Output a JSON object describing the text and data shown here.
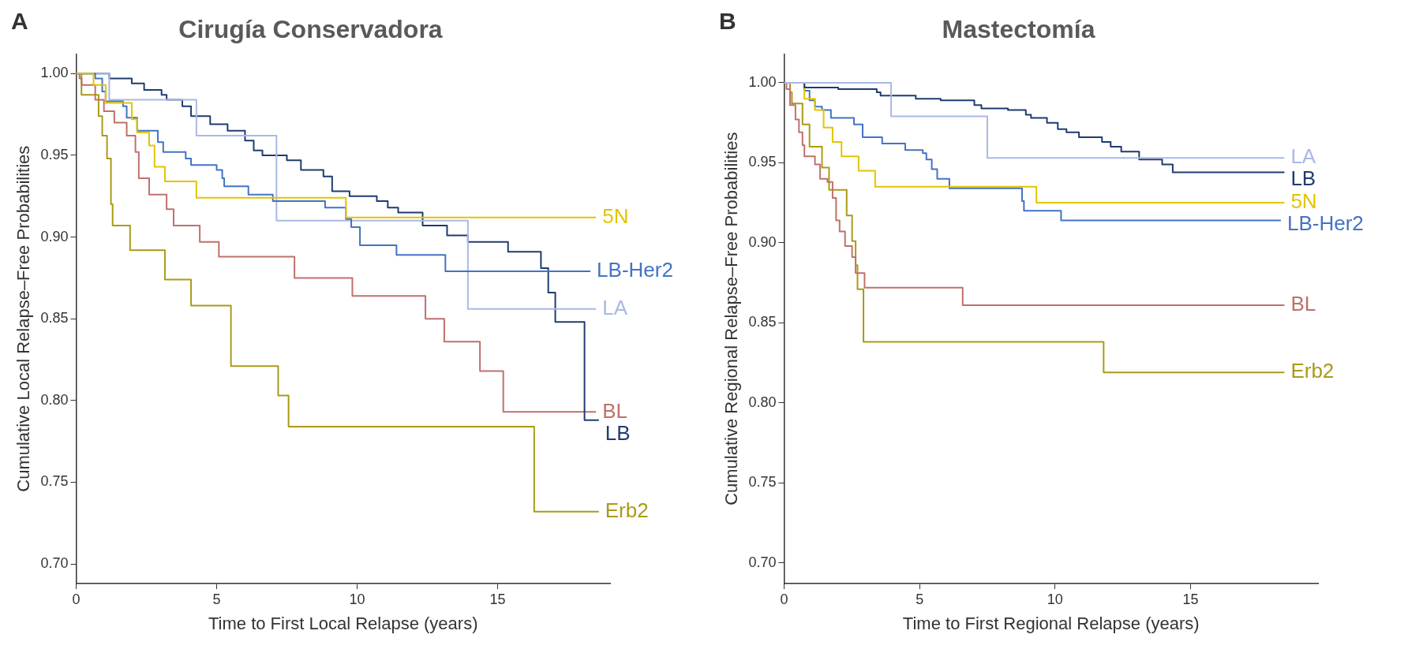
{
  "chart_data": [
    {
      "type": "step",
      "title": "Cirugía Conservadora",
      "xlabel": "Time to First Local Relapse (years)",
      "ylabel": "Cumulative Local Relapse–Free Probabilities",
      "annotations": [
        "A"
      ],
      "xlim": [
        0,
        19
      ],
      "xticks": [
        0,
        5,
        10,
        15
      ],
      "ylim": [
        0.688,
        1.012
      ],
      "yticks": [
        {
          "value": 0.7,
          "label": "0.70"
        },
        0.75,
        {
          "value": 0.8,
          "label": "0.80"
        },
        0.85,
        {
          "value": 0.9,
          "label": "0.90"
        },
        0.95,
        {
          "value": 1,
          "label": "1.00"
        }
      ],
      "grid": false,
      "series": [
        {
          "name": "5N",
          "color": "#e2c400",
          "x": [
            0,
            0.62,
            1.05,
            1.98,
            2.17,
            2.6,
            2.79,
            3.16,
            4.28,
            9.6,
            18.5
          ],
          "values": [
            1,
            0.993,
            0.982,
            0.972,
            0.964,
            0.956,
            0.943,
            0.934,
            0.924,
            0.912,
            0.912
          ]
        },
        {
          "name": "LB-Her2",
          "color": "#4472c4",
          "x": [
            0,
            0.68,
            0.93,
            1.05,
            1.67,
            1.8,
            2.17,
            2.91,
            3.1,
            3.9,
            4.09,
            5.0,
            5.2,
            5.27,
            6.13,
            7.0,
            8.86,
            9.6,
            9.79,
            10.1,
            11.4,
            13.14,
            18.3
          ],
          "values": [
            1,
            0.997,
            0.989,
            0.983,
            0.98,
            0.973,
            0.965,
            0.958,
            0.952,
            0.948,
            0.944,
            0.941,
            0.936,
            0.931,
            0.926,
            0.922,
            0.918,
            0.911,
            0.906,
            0.895,
            0.889,
            0.879,
            0.879
          ]
        },
        {
          "name": "LA",
          "color": "#a9b9e6",
          "x": [
            0,
            1.18,
            4.28,
            7.13,
            13.94,
            18.5
          ],
          "values": [
            1,
            0.984,
            0.962,
            0.91,
            0.856,
            0.856
          ]
        },
        {
          "name": "LB",
          "color": "#1f3b6f",
          "x": [
            0,
            1.18,
            1.98,
            2.42,
            3.04,
            3.22,
            3.78,
            4.09,
            4.77,
            5.39,
            6.01,
            6.32,
            6.63,
            7.5,
            8.0,
            8.8,
            9.11,
            9.73,
            10.7,
            11.09,
            11.46,
            12.33,
            13.2,
            13.94,
            15.37,
            16.54,
            16.8,
            17.05,
            18.09,
            18.6
          ],
          "values": [
            1,
            0.997,
            0.994,
            0.99,
            0.987,
            0.984,
            0.98,
            0.974,
            0.969,
            0.965,
            0.959,
            0.953,
            0.95,
            0.947,
            0.941,
            0.937,
            0.928,
            0.925,
            0.922,
            0.918,
            0.915,
            0.907,
            0.901,
            0.897,
            0.891,
            0.881,
            0.866,
            0.848,
            0.788,
            0.788
          ]
        },
        {
          "name": "BL",
          "color": "#c0706c",
          "x": [
            0,
            0.12,
            0.2,
            0.68,
            0.99,
            1.36,
            1.8,
            2.11,
            2.23,
            2.6,
            3.22,
            3.47,
            4.4,
            5.08,
            7.77,
            9.83,
            12.43,
            13.1,
            14.37,
            15.2,
            18.5
          ],
          "values": [
            1,
            0.997,
            0.993,
            0.984,
            0.977,
            0.97,
            0.962,
            0.952,
            0.936,
            0.926,
            0.917,
            0.907,
            0.897,
            0.888,
            0.875,
            0.864,
            0.85,
            0.836,
            0.818,
            0.793,
            0.793
          ]
        },
        {
          "name": "Erb2",
          "color": "#a99b16",
          "x": [
            0,
            0.19,
            0.8,
            0.93,
            1.1,
            1.24,
            1.3,
            1.92,
            3.16,
            4.09,
            5.51,
            7.19,
            7.56,
            16.3,
            18.6
          ],
          "values": [
            1,
            0.987,
            0.974,
            0.962,
            0.948,
            0.92,
            0.907,
            0.892,
            0.874,
            0.858,
            0.821,
            0.803,
            0.784,
            0.732,
            0.732
          ]
        }
      ]
    },
    {
      "type": "step",
      "title": "Mastectomía",
      "xlabel": "Time to First Regional Relapse (years)",
      "ylabel": "Cumulative Regional Relapse–Free Probabilities",
      "annotations": [
        "B"
      ],
      "xlim": [
        0,
        19.7
      ],
      "xticks": [
        0,
        5,
        10,
        15
      ],
      "ylim": [
        0.687,
        1.018
      ],
      "yticks": [
        {
          "value": 0.7,
          "label": "0.70"
        },
        0.75,
        {
          "value": 0.8,
          "label": "0.80"
        },
        0.85,
        {
          "value": 0.9,
          "label": "0.90"
        },
        0.95,
        {
          "value": 1,
          "label": "1.00"
        }
      ],
      "grid": false,
      "series": [
        {
          "name": "LA",
          "color": "#a9b9e6",
          "x": [
            0,
            3.95,
            7.5,
            18.46
          ],
          "values": [
            1,
            0.979,
            0.953,
            0.953
          ]
        },
        {
          "name": "LB",
          "color": "#1f3b6f",
          "x": [
            0,
            0.75,
            2.0,
            3.42,
            3.56,
            4.86,
            5.78,
            7.02,
            7.28,
            8.26,
            8.92,
            9.11,
            9.7,
            10.1,
            10.42,
            10.88,
            11.73,
            12.05,
            12.44,
            13.1,
            13.95,
            14.34,
            18.46
          ],
          "values": [
            1,
            0.997,
            0.996,
            0.994,
            0.992,
            0.99,
            0.989,
            0.986,
            0.984,
            0.983,
            0.98,
            0.978,
            0.975,
            0.971,
            0.969,
            0.966,
            0.963,
            0.96,
            0.957,
            0.952,
            0.949,
            0.944,
            0.944
          ]
        },
        {
          "name": "5N",
          "color": "#e2c400",
          "x": [
            0,
            0.75,
            1.14,
            1.46,
            1.79,
            2.12,
            2.75,
            3.36,
            9.31,
            18.46
          ],
          "values": [
            1,
            0.99,
            0.983,
            0.972,
            0.963,
            0.954,
            0.945,
            0.935,
            0.925,
            0.925
          ]
        },
        {
          "name": "LB-Her2",
          "color": "#4472c4",
          "x": [
            0,
            0.75,
            0.94,
            1.14,
            1.4,
            1.73,
            2.58,
            2.9,
            3.62,
            4.47,
            5.12,
            5.25,
            5.45,
            5.65,
            6.1,
            8.78,
            8.85,
            10.22,
            18.33
          ],
          "values": [
            1,
            0.995,
            0.989,
            0.985,
            0.983,
            0.978,
            0.974,
            0.966,
            0.962,
            0.958,
            0.956,
            0.952,
            0.946,
            0.94,
            0.934,
            0.926,
            0.92,
            0.914,
            0.914
          ]
        },
        {
          "name": "BL",
          "color": "#c0706c",
          "x": [
            0,
            0.09,
            0.22,
            0.42,
            0.55,
            0.68,
            0.75,
            1.14,
            1.33,
            1.6,
            1.79,
            1.92,
            2.05,
            2.25,
            2.51,
            2.64,
            2.97,
            6.59,
            18.46
          ],
          "values": [
            1,
            0.996,
            0.986,
            0.977,
            0.969,
            0.961,
            0.954,
            0.949,
            0.94,
            0.938,
            0.928,
            0.914,
            0.907,
            0.898,
            0.891,
            0.881,
            0.872,
            0.861,
            0.861
          ]
        },
        {
          "name": "Erb2",
          "color": "#a99b16",
          "x": [
            0,
            0.22,
            0.29,
            0.68,
            0.94,
            1.4,
            1.66,
            2.31,
            2.51,
            2.64,
            2.71,
            2.93,
            11.79,
            18.46
          ],
          "values": [
            1,
            0.994,
            0.987,
            0.974,
            0.96,
            0.947,
            0.933,
            0.917,
            0.901,
            0.886,
            0.871,
            0.838,
            0.819,
            0.819
          ]
        }
      ]
    }
  ]
}
